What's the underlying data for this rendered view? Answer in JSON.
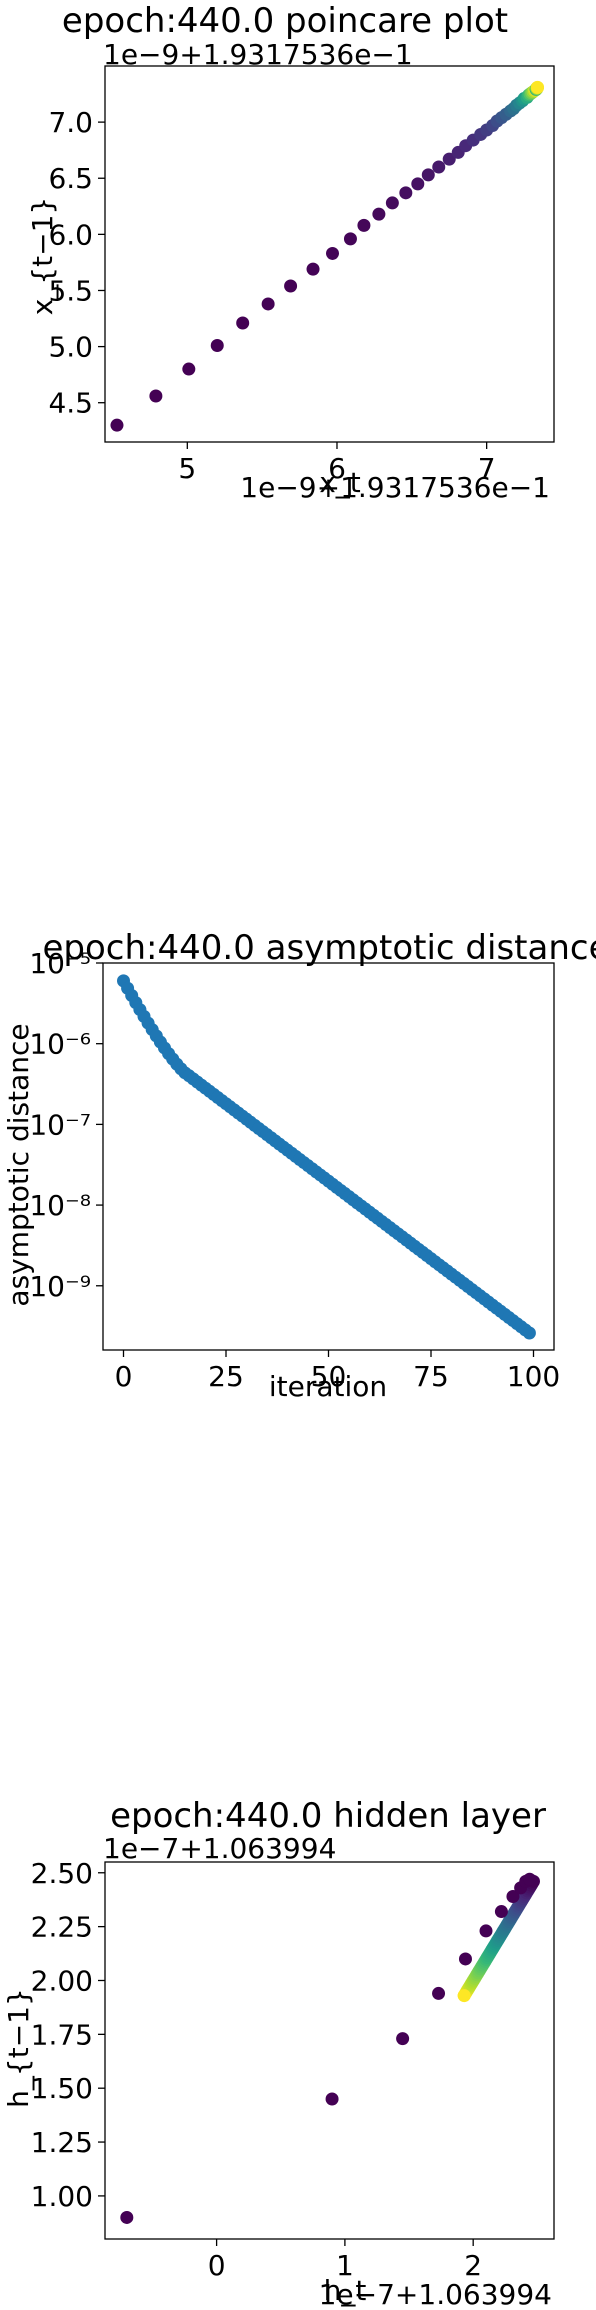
{
  "chart_data": [
    {
      "type": "scatter",
      "title": "epoch:440.0 poincare plot",
      "xlabel": "x_t",
      "ylabel": "x_{t−1}",
      "x_offset_label": "1e−9+1.9317536e−1",
      "y_offset_label": "1e−9+1.9317536e−1",
      "xlim": [
        4.45,
        7.45
      ],
      "ylim": [
        4.15,
        7.5
      ],
      "xticks": [
        5,
        6,
        7
      ],
      "xtick_labels": [
        "5",
        "6",
        "7"
      ],
      "yticks": [
        4.5,
        5.0,
        5.5,
        6.0,
        6.5,
        7.0
      ],
      "ytick_labels": [
        "4.5",
        "5.0",
        "5.5",
        "6.0",
        "6.5",
        "7.0"
      ],
      "colormap": "viridis",
      "points": [
        [
          4.53,
          4.3
        ],
        [
          4.79,
          4.56
        ],
        [
          5.01,
          4.8
        ],
        [
          5.2,
          5.01
        ],
        [
          5.37,
          5.21
        ],
        [
          5.54,
          5.38
        ],
        [
          5.69,
          5.54
        ],
        [
          5.84,
          5.69
        ],
        [
          5.97,
          5.83
        ],
        [
          6.09,
          5.96
        ],
        [
          6.18,
          6.08
        ],
        [
          6.28,
          6.18
        ],
        [
          6.37,
          6.28
        ],
        [
          6.46,
          6.37
        ],
        [
          6.54,
          6.45
        ],
        [
          6.61,
          6.53
        ],
        [
          6.68,
          6.6
        ],
        [
          6.75,
          6.67
        ],
        [
          6.81,
          6.73
        ],
        [
          6.86,
          6.79
        ],
        [
          6.91,
          6.84
        ],
        [
          6.96,
          6.89
        ],
        [
          7.0,
          6.93
        ],
        [
          7.04,
          6.97
        ],
        [
          7.07,
          7.01
        ],
        [
          7.1,
          7.04
        ],
        [
          7.13,
          7.07
        ],
        [
          7.16,
          7.1
        ],
        [
          7.18,
          7.12
        ],
        [
          7.2,
          7.15
        ],
        [
          7.22,
          7.17
        ],
        [
          7.24,
          7.19
        ],
        [
          7.25,
          7.21
        ],
        [
          7.27,
          7.22
        ],
        [
          7.28,
          7.24
        ],
        [
          7.29,
          7.25
        ],
        [
          7.3,
          7.26
        ],
        [
          7.31,
          7.27
        ],
        [
          7.32,
          7.28
        ],
        [
          7.33,
          7.29
        ]
      ],
      "grid": false
    },
    {
      "type": "scatter",
      "title": "epoch:440.0 asymptotic distance",
      "xlabel": "iteration",
      "ylabel": "asymptotic distance",
      "xlim": [
        -5,
        105
      ],
      "yscale": "log",
      "ylim": [
        1.6e-10,
        1e-05
      ],
      "xticks": [
        0,
        25,
        50,
        75,
        100
      ],
      "xtick_labels": [
        "0",
        "25",
        "50",
        "75",
        "100"
      ],
      "yticks": [
        1e-09,
        1e-08,
        1e-07,
        1e-06,
        1e-05
      ],
      "ytick_labels": [
        "10⁻⁹",
        "10⁻⁸",
        "10⁻⁷",
        "10⁻⁶",
        "10⁻⁵"
      ],
      "color": "#1f77b4",
      "y_start": 6e-06,
      "y_knee": 4e-07,
      "y_end": 2.6e-10,
      "n_points": 100,
      "grid": false
    },
    {
      "type": "scatter",
      "title": "epoch:440.0 hidden layer",
      "xlabel": "h_t",
      "ylabel": "h_{t−1}",
      "x_offset_label": "1e−7+1.063994",
      "y_offset_label": "1e−7+1.063994",
      "xlim": [
        -0.87,
        2.63
      ],
      "ylim": [
        0.8,
        2.55
      ],
      "xticks": [
        0,
        1,
        2
      ],
      "xtick_labels": [
        "0",
        "1",
        "2"
      ],
      "yticks": [
        1.0,
        1.25,
        1.5,
        1.75,
        2.0,
        2.25,
        2.5
      ],
      "ytick_labels": [
        "1.00",
        "1.25",
        "1.50",
        "1.75",
        "2.00",
        "2.25",
        "2.50"
      ],
      "colormap": "viridis",
      "outer_points": [
        [
          -0.7,
          0.9
        ],
        [
          0.9,
          1.45
        ],
        [
          1.45,
          1.73
        ],
        [
          1.73,
          1.94
        ],
        [
          1.94,
          2.1
        ],
        [
          2.1,
          2.23
        ],
        [
          2.22,
          2.32
        ],
        [
          2.31,
          2.39
        ],
        [
          2.37,
          2.43
        ],
        [
          2.41,
          2.46
        ],
        [
          2.44,
          2.47
        ]
      ],
      "diagonal_from": [
        1.93,
        1.93
      ],
      "diagonal_to": [
        2.47,
        2.46
      ],
      "grid": false
    }
  ]
}
